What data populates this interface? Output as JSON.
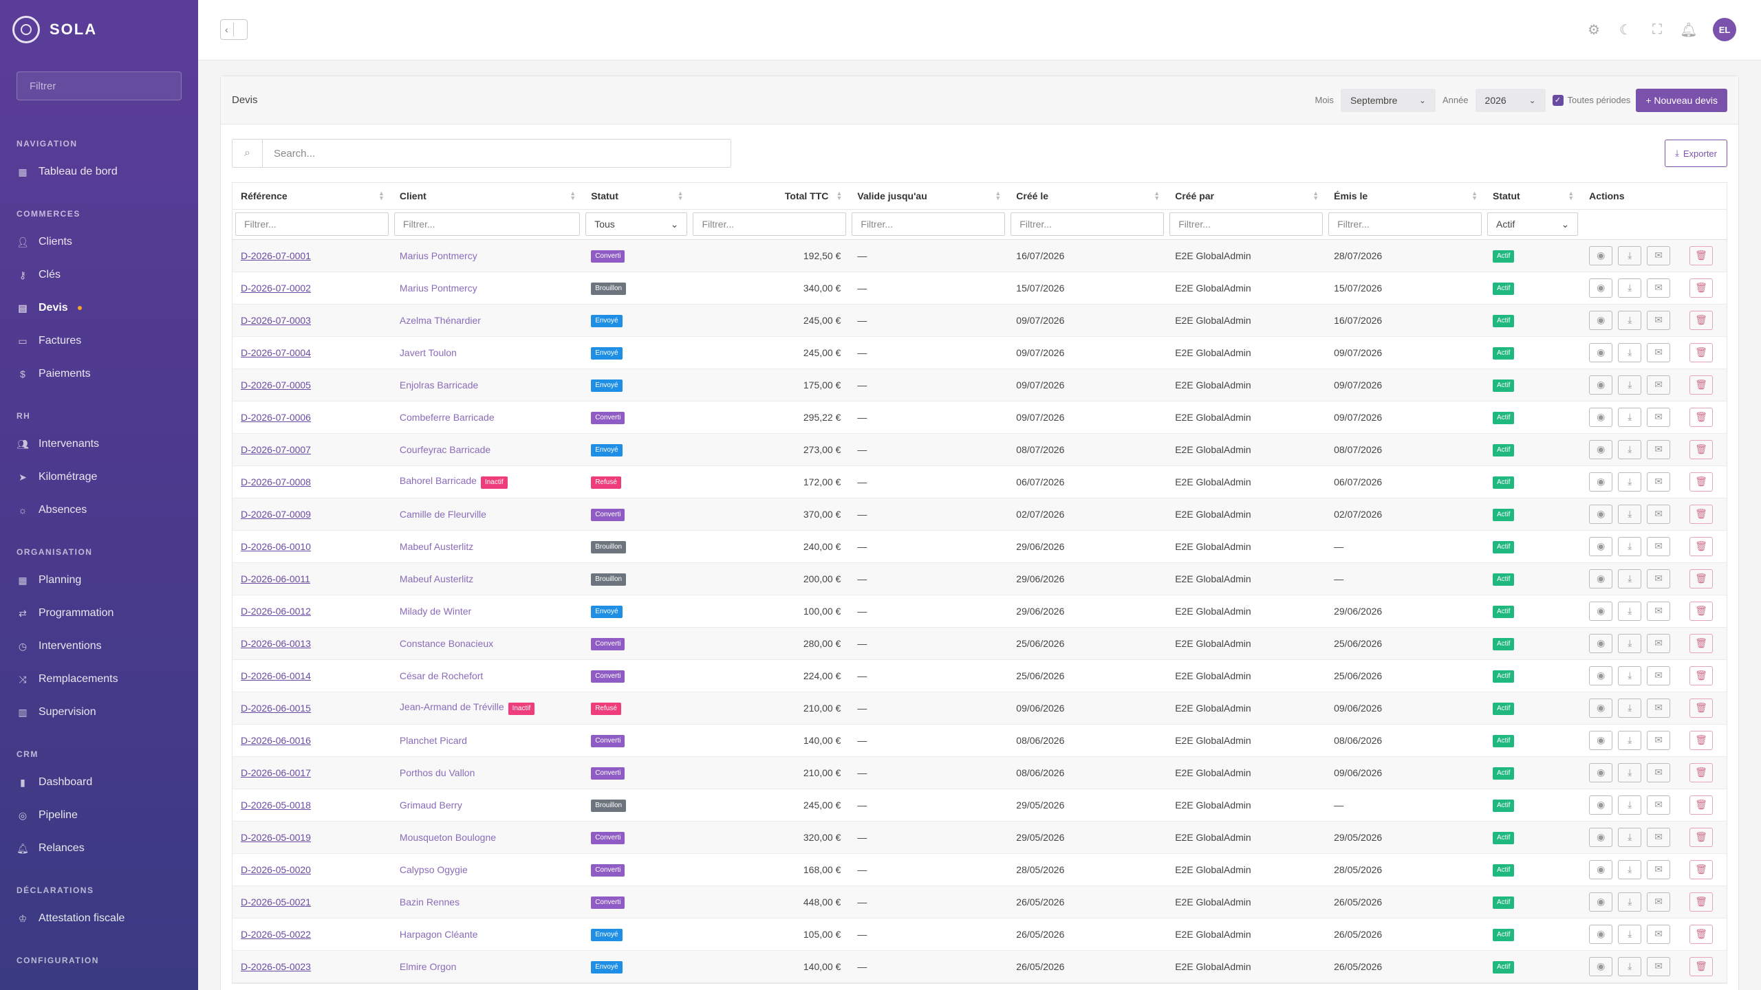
{
  "brand": {
    "name": "SOLA"
  },
  "sidebar": {
    "filter_placeholder": "Filtrer",
    "sections": [
      {
        "title": "NAVIGATION",
        "items": [
          {
            "label": "Tableau de bord",
            "icon": "dashboard-icon"
          }
        ]
      },
      {
        "title": "COMMERCES",
        "items": [
          {
            "label": "Clients",
            "icon": "users-icon"
          },
          {
            "label": "Clés",
            "icon": "key-icon"
          },
          {
            "label": "Devis",
            "icon": "document-icon",
            "active": true
          },
          {
            "label": "Factures",
            "icon": "invoice-icon"
          },
          {
            "label": "Paiements",
            "icon": "dollar-icon"
          }
        ]
      },
      {
        "title": "RH",
        "items": [
          {
            "label": "Intervenants",
            "icon": "people-icon"
          },
          {
            "label": "Kilométrage",
            "icon": "send-icon"
          },
          {
            "label": "Absences",
            "icon": "sun-icon"
          }
        ]
      },
      {
        "title": "ORGANISATION",
        "items": [
          {
            "label": "Planning",
            "icon": "calendar-icon"
          },
          {
            "label": "Programmation",
            "icon": "repeat-icon"
          },
          {
            "label": "Interventions",
            "icon": "clock-icon"
          },
          {
            "label": "Remplacements",
            "icon": "shuffle-icon"
          },
          {
            "label": "Supervision",
            "icon": "map-icon"
          }
        ]
      },
      {
        "title": "CRM",
        "items": [
          {
            "label": "Dashboard",
            "icon": "bar-chart-icon"
          },
          {
            "label": "Pipeline",
            "icon": "target-icon"
          },
          {
            "label": "Relances",
            "icon": "bell-icon"
          }
        ]
      },
      {
        "title": "DÉCLARATIONS",
        "items": [
          {
            "label": "Attestation fiscale",
            "icon": "award-icon"
          }
        ]
      },
      {
        "title": "CONFIGURATION",
        "items": []
      }
    ]
  },
  "topbar": {
    "avatar_initials": "EL"
  },
  "card": {
    "title": "Devis",
    "month_label": "Mois",
    "month_value": "Septembre",
    "year_label": "Année",
    "year_value": "2026",
    "all_periods_label": "Toutes périodes",
    "new_button": "+ Nouveau devis",
    "search_placeholder": "Search...",
    "export_label": "Exporter"
  },
  "table": {
    "columns": [
      "Référence",
      "Client",
      "Statut",
      "Total TTC",
      "Valide jusqu'au",
      "Créé le",
      "Créé par",
      "Émis le",
      "Statut",
      "Actions"
    ],
    "filters": {
      "placeholder": "Filtrer...",
      "statut_value": "Tous",
      "actif_value": "Actif"
    },
    "rows": [
      {
        "ref": "D-2026-07-0001",
        "client": "Marius Pontmercy",
        "inactive": "",
        "status": "Converti",
        "status_class": "b-converti",
        "total": "192,50 €",
        "valid": "—",
        "created": "16/07/2026",
        "by": "E2E GlobalAdmin",
        "issued": "28/07/2026",
        "state": "Actif"
      },
      {
        "ref": "D-2026-07-0002",
        "client": "Marius Pontmercy",
        "inactive": "",
        "status": "Brouillon",
        "status_class": "b-brouillon",
        "total": "340,00 €",
        "valid": "—",
        "created": "15/07/2026",
        "by": "E2E GlobalAdmin",
        "issued": "15/07/2026",
        "state": "Actif"
      },
      {
        "ref": "D-2026-07-0003",
        "client": "Azelma Thénardier",
        "inactive": "",
        "status": "Envoyé",
        "status_class": "b-envoye",
        "total": "245,00 €",
        "valid": "—",
        "created": "09/07/2026",
        "by": "E2E GlobalAdmin",
        "issued": "16/07/2026",
        "state": "Actif"
      },
      {
        "ref": "D-2026-07-0004",
        "client": "Javert Toulon",
        "inactive": "",
        "status": "Envoyé",
        "status_class": "b-envoye",
        "total": "245,00 €",
        "valid": "—",
        "created": "09/07/2026",
        "by": "E2E GlobalAdmin",
        "issued": "09/07/2026",
        "state": "Actif"
      },
      {
        "ref": "D-2026-07-0005",
        "client": "Enjolras Barricade",
        "inactive": "",
        "status": "Envoyé",
        "status_class": "b-envoye",
        "total": "175,00 €",
        "valid": "—",
        "created": "09/07/2026",
        "by": "E2E GlobalAdmin",
        "issued": "09/07/2026",
        "state": "Actif"
      },
      {
        "ref": "D-2026-07-0006",
        "client": "Combeferre Barricade",
        "inactive": "",
        "status": "Converti",
        "status_class": "b-converti",
        "total": "295,22 €",
        "valid": "—",
        "created": "09/07/2026",
        "by": "E2E GlobalAdmin",
        "issued": "09/07/2026",
        "state": "Actif"
      },
      {
        "ref": "D-2026-07-0007",
        "client": "Courfeyrac Barricade",
        "inactive": "",
        "status": "Envoyé",
        "status_class": "b-envoye",
        "total": "273,00 €",
        "valid": "—",
        "created": "08/07/2026",
        "by": "E2E GlobalAdmin",
        "issued": "08/07/2026",
        "state": "Actif"
      },
      {
        "ref": "D-2026-07-0008",
        "client": "Bahorel Barricade",
        "inactive": "Inactif",
        "status": "Refusé",
        "status_class": "b-refuse",
        "total": "172,00 €",
        "valid": "—",
        "created": "06/07/2026",
        "by": "E2E GlobalAdmin",
        "issued": "06/07/2026",
        "state": "Actif"
      },
      {
        "ref": "D-2026-07-0009",
        "client": "Camille de Fleurville",
        "inactive": "",
        "status": "Converti",
        "status_class": "b-converti",
        "total": "370,00 €",
        "valid": "—",
        "created": "02/07/2026",
        "by": "E2E GlobalAdmin",
        "issued": "02/07/2026",
        "state": "Actif"
      },
      {
        "ref": "D-2026-06-0010",
        "client": "Mabeuf Austerlitz",
        "inactive": "",
        "status": "Brouillon",
        "status_class": "b-brouillon",
        "total": "240,00 €",
        "valid": "—",
        "created": "29/06/2026",
        "by": "E2E GlobalAdmin",
        "issued": "—",
        "state": "Actif"
      },
      {
        "ref": "D-2026-06-0011",
        "client": "Mabeuf Austerlitz",
        "inactive": "",
        "status": "Brouillon",
        "status_class": "b-brouillon",
        "total": "200,00 €",
        "valid": "—",
        "created": "29/06/2026",
        "by": "E2E GlobalAdmin",
        "issued": "—",
        "state": "Actif"
      },
      {
        "ref": "D-2026-06-0012",
        "client": "Milady de Winter",
        "inactive": "",
        "status": "Envoyé",
        "status_class": "b-envoye",
        "total": "100,00 €",
        "valid": "—",
        "created": "29/06/2026",
        "by": "E2E GlobalAdmin",
        "issued": "29/06/2026",
        "state": "Actif"
      },
      {
        "ref": "D-2026-06-0013",
        "client": "Constance Bonacieux",
        "inactive": "",
        "status": "Converti",
        "status_class": "b-converti",
        "total": "280,00 €",
        "valid": "—",
        "created": "25/06/2026",
        "by": "E2E GlobalAdmin",
        "issued": "25/06/2026",
        "state": "Actif"
      },
      {
        "ref": "D-2026-06-0014",
        "client": "César de Rochefort",
        "inactive": "",
        "status": "Converti",
        "status_class": "b-converti",
        "total": "224,00 €",
        "valid": "—",
        "created": "25/06/2026",
        "by": "E2E GlobalAdmin",
        "issued": "25/06/2026",
        "state": "Actif"
      },
      {
        "ref": "D-2026-06-0015",
        "client": "Jean-Armand de Tréville",
        "inactive": "Inactif",
        "status": "Refusé",
        "status_class": "b-refuse",
        "total": "210,00 €",
        "valid": "—",
        "created": "09/06/2026",
        "by": "E2E GlobalAdmin",
        "issued": "09/06/2026",
        "state": "Actif"
      },
      {
        "ref": "D-2026-06-0016",
        "client": "Planchet Picard",
        "inactive": "",
        "status": "Converti",
        "status_class": "b-converti",
        "total": "140,00 €",
        "valid": "—",
        "created": "08/06/2026",
        "by": "E2E GlobalAdmin",
        "issued": "08/06/2026",
        "state": "Actif"
      },
      {
        "ref": "D-2026-06-0017",
        "client": "Porthos du Vallon",
        "inactive": "",
        "status": "Converti",
        "status_class": "b-converti",
        "total": "210,00 €",
        "valid": "—",
        "created": "08/06/2026",
        "by": "E2E GlobalAdmin",
        "issued": "09/06/2026",
        "state": "Actif"
      },
      {
        "ref": "D-2026-05-0018",
        "client": "Grimaud Berry",
        "inactive": "",
        "status": "Brouillon",
        "status_class": "b-brouillon",
        "total": "245,00 €",
        "valid": "—",
        "created": "29/05/2026",
        "by": "E2E GlobalAdmin",
        "issued": "—",
        "state": "Actif"
      },
      {
        "ref": "D-2026-05-0019",
        "client": "Mousqueton Boulogne",
        "inactive": "",
        "status": "Converti",
        "status_class": "b-converti",
        "total": "320,00 €",
        "valid": "—",
        "created": "29/05/2026",
        "by": "E2E GlobalAdmin",
        "issued": "29/05/2026",
        "state": "Actif"
      },
      {
        "ref": "D-2026-05-0020",
        "client": "Calypso Ogygie",
        "inactive": "",
        "status": "Converti",
        "status_class": "b-converti",
        "total": "168,00 €",
        "valid": "—",
        "created": "28/05/2026",
        "by": "E2E GlobalAdmin",
        "issued": "28/05/2026",
        "state": "Actif"
      },
      {
        "ref": "D-2026-05-0021",
        "client": "Bazin Rennes",
        "inactive": "",
        "status": "Converti",
        "status_class": "b-converti",
        "total": "448,00 €",
        "valid": "—",
        "created": "26/05/2026",
        "by": "E2E GlobalAdmin",
        "issued": "26/05/2026",
        "state": "Actif"
      },
      {
        "ref": "D-2026-05-0022",
        "client": "Harpagon Cléante",
        "inactive": "",
        "status": "Envoyé",
        "status_class": "b-envoye",
        "total": "105,00 €",
        "valid": "—",
        "created": "26/05/2026",
        "by": "E2E GlobalAdmin",
        "issued": "26/05/2026",
        "state": "Actif"
      },
      {
        "ref": "D-2026-05-0023",
        "client": "Elmire Orgon",
        "inactive": "",
        "status": "Envoyé",
        "status_class": "b-envoye",
        "total": "140,00 €",
        "valid": "—",
        "created": "26/05/2026",
        "by": "E2E GlobalAdmin",
        "issued": "26/05/2026",
        "state": "Actif"
      }
    ]
  },
  "colors": {
    "accent": "#7b52ab",
    "sidebar_top": "#5b3d98",
    "sidebar_bottom": "#3a3a82",
    "success": "#1fb87e",
    "danger": "#ee3d7a",
    "info": "#1f8fe5"
  }
}
